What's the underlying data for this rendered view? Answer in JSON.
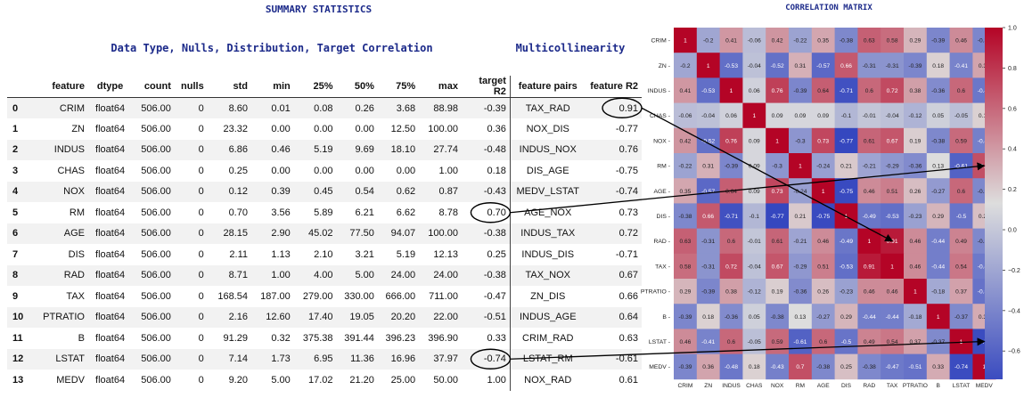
{
  "titles": {
    "summary": "SUMMARY STATISTICS",
    "distribution": "Data Type, Nulls, Distribution, Target Correlation",
    "multicollinearity": "Multicollinearity"
  },
  "table": {
    "columns": [
      "",
      "feature",
      "dtype",
      "count",
      "nulls",
      "std",
      "min",
      "25%",
      "50%",
      "75%",
      "max",
      "target R2",
      "feature pairs",
      "feature R2"
    ],
    "rows": [
      [
        "0",
        "CRIM",
        "float64",
        "506.00",
        "0",
        "8.60",
        "0.01",
        "0.08",
        "0.26",
        "3.68",
        "88.98",
        "-0.39",
        "TAX_RAD",
        "0.91"
      ],
      [
        "1",
        "ZN",
        "float64",
        "506.00",
        "0",
        "23.32",
        "0.00",
        "0.00",
        "0.00",
        "12.50",
        "100.00",
        "0.36",
        "NOX_DIS",
        "-0.77"
      ],
      [
        "2",
        "INDUS",
        "float64",
        "506.00",
        "0",
        "6.86",
        "0.46",
        "5.19",
        "9.69",
        "18.10",
        "27.74",
        "-0.48",
        "INDUS_NOX",
        "0.76"
      ],
      [
        "3",
        "CHAS",
        "float64",
        "506.00",
        "0",
        "0.25",
        "0.00",
        "0.00",
        "0.00",
        "0.00",
        "1.00",
        "0.18",
        "DIS_AGE",
        "-0.75"
      ],
      [
        "4",
        "NOX",
        "float64",
        "506.00",
        "0",
        "0.12",
        "0.39",
        "0.45",
        "0.54",
        "0.62",
        "0.87",
        "-0.43",
        "MEDV_LSTAT",
        "-0.74"
      ],
      [
        "5",
        "RM",
        "float64",
        "506.00",
        "0",
        "0.70",
        "3.56",
        "5.89",
        "6.21",
        "6.62",
        "8.78",
        "0.70",
        "AGE_NOX",
        "0.73"
      ],
      [
        "6",
        "AGE",
        "float64",
        "506.00",
        "0",
        "28.15",
        "2.90",
        "45.02",
        "77.50",
        "94.07",
        "100.00",
        "-0.38",
        "INDUS_TAX",
        "0.72"
      ],
      [
        "7",
        "DIS",
        "float64",
        "506.00",
        "0",
        "2.11",
        "1.13",
        "2.10",
        "3.21",
        "5.19",
        "12.13",
        "0.25",
        "INDUS_DIS",
        "-0.71"
      ],
      [
        "8",
        "RAD",
        "float64",
        "506.00",
        "0",
        "8.71",
        "1.00",
        "4.00",
        "5.00",
        "24.00",
        "24.00",
        "-0.38",
        "TAX_NOX",
        "0.67"
      ],
      [
        "9",
        "TAX",
        "float64",
        "506.00",
        "0",
        "168.54",
        "187.00",
        "279.00",
        "330.00",
        "666.00",
        "711.00",
        "-0.47",
        "ZN_DIS",
        "0.66"
      ],
      [
        "10",
        "PTRATIO",
        "float64",
        "506.00",
        "0",
        "2.16",
        "12.60",
        "17.40",
        "19.05",
        "20.20",
        "22.00",
        "-0.51",
        "INDUS_AGE",
        "0.64"
      ],
      [
        "11",
        "B",
        "float64",
        "506.00",
        "0",
        "91.29",
        "0.32",
        "375.38",
        "391.44",
        "396.23",
        "396.90",
        "0.33",
        "CRIM_RAD",
        "0.63"
      ],
      [
        "12",
        "LSTAT",
        "float64",
        "506.00",
        "0",
        "7.14",
        "1.73",
        "6.95",
        "11.36",
        "16.96",
        "37.97",
        "-0.74",
        "LSTAT_RM",
        "-0.61"
      ],
      [
        "13",
        "MEDV",
        "float64",
        "506.00",
        "0",
        "9.20",
        "5.00",
        "17.02",
        "21.20",
        "25.00",
        "50.00",
        "1.00",
        "NOX_RAD",
        "0.61"
      ]
    ]
  },
  "chart_data": {
    "type": "heatmap",
    "title": "CORRELATION MATRIX",
    "labels": [
      "CRIM",
      "ZN",
      "INDUS",
      "CHAS",
      "NOX",
      "RM",
      "AGE",
      "DIS",
      "RAD",
      "TAX",
      "PTRATIO",
      "B",
      "LSTAT",
      "MEDV"
    ],
    "matrix": [
      [
        1,
        -0.2,
        0.41,
        -0.06,
        0.42,
        -0.22,
        0.35,
        -0.38,
        0.63,
        0.58,
        0.29,
        -0.39,
        0.46,
        -0.39
      ],
      [
        -0.2,
        1,
        -0.53,
        -0.04,
        -0.52,
        0.31,
        -0.57,
        0.66,
        -0.31,
        -0.31,
        -0.39,
        0.18,
        -0.41,
        0.36
      ],
      [
        0.41,
        -0.53,
        1,
        0.06,
        0.76,
        -0.39,
        0.64,
        -0.71,
        0.6,
        0.72,
        0.38,
        -0.36,
        0.6,
        -0.48
      ],
      [
        -0.06,
        -0.04,
        0.06,
        1,
        0.09,
        0.09,
        0.09,
        -0.1,
        -0.01,
        -0.04,
        -0.12,
        0.05,
        -0.05,
        0.18
      ],
      [
        0.42,
        -0.52,
        0.76,
        0.09,
        1,
        -0.3,
        0.73,
        -0.77,
        0.61,
        0.67,
        0.19,
        -0.38,
        0.59,
        -0.43
      ],
      [
        -0.22,
        0.31,
        -0.39,
        0.09,
        -0.3,
        1,
        -0.24,
        0.21,
        -0.21,
        -0.29,
        -0.36,
        0.13,
        -0.61,
        0.7
      ],
      [
        0.35,
        -0.57,
        0.64,
        0.09,
        0.73,
        -0.24,
        1,
        -0.75,
        0.46,
        0.51,
        0.26,
        -0.27,
        0.6,
        -0.38
      ],
      [
        -0.38,
        0.66,
        -0.71,
        -0.1,
        -0.77,
        0.21,
        -0.75,
        1,
        -0.49,
        -0.53,
        -0.23,
        0.29,
        -0.5,
        0.25
      ],
      [
        0.63,
        -0.31,
        0.6,
        -0.01,
        0.61,
        -0.21,
        0.46,
        -0.49,
        1,
        0.91,
        0.46,
        -0.44,
        0.49,
        -0.38
      ],
      [
        0.58,
        -0.31,
        0.72,
        -0.04,
        0.67,
        -0.29,
        0.51,
        -0.53,
        0.91,
        1,
        0.46,
        -0.44,
        0.54,
        -0.47
      ],
      [
        0.29,
        -0.39,
        0.38,
        -0.12,
        0.19,
        -0.36,
        0.26,
        -0.23,
        0.46,
        0.46,
        1,
        -0.18,
        0.37,
        -0.51
      ],
      [
        -0.39,
        0.18,
        -0.36,
        0.05,
        -0.38,
        0.13,
        -0.27,
        0.29,
        -0.44,
        -0.44,
        -0.18,
        1,
        -0.37,
        0.33
      ],
      [
        0.46,
        -0.41,
        0.6,
        -0.05,
        0.59,
        -0.61,
        0.6,
        -0.5,
        0.49,
        0.54,
        0.37,
        -0.37,
        1,
        -0.74
      ],
      [
        -0.39,
        0.36,
        -0.48,
        0.18,
        -0.43,
        0.7,
        -0.38,
        0.25,
        -0.38,
        -0.47,
        -0.51,
        0.33,
        -0.74,
        1
      ]
    ],
    "colorbar_ticks": [
      "1.0",
      "0.8",
      "0.6",
      "0.4",
      "0.2",
      "0.0",
      "−0.2",
      "−0.4",
      "−0.6"
    ],
    "vmin": -0.74,
    "vmax": 1,
    "colormap": "coolwarm",
    "low_color": "#3b4cc0",
    "mid_color": "#dddddd",
    "high_color": "#b40426"
  },
  "annotations": [
    {
      "from": "table-rows.0.feature-r2",
      "to": "RAD/TAX",
      "value": "0.91"
    },
    {
      "from": "table-rows.5.target-r2",
      "to": "RM/MEDV",
      "value": "0.70"
    },
    {
      "from": "table-rows.12.target-r2",
      "to": "LSTAT/MEDV",
      "value": "-0.74"
    }
  ]
}
